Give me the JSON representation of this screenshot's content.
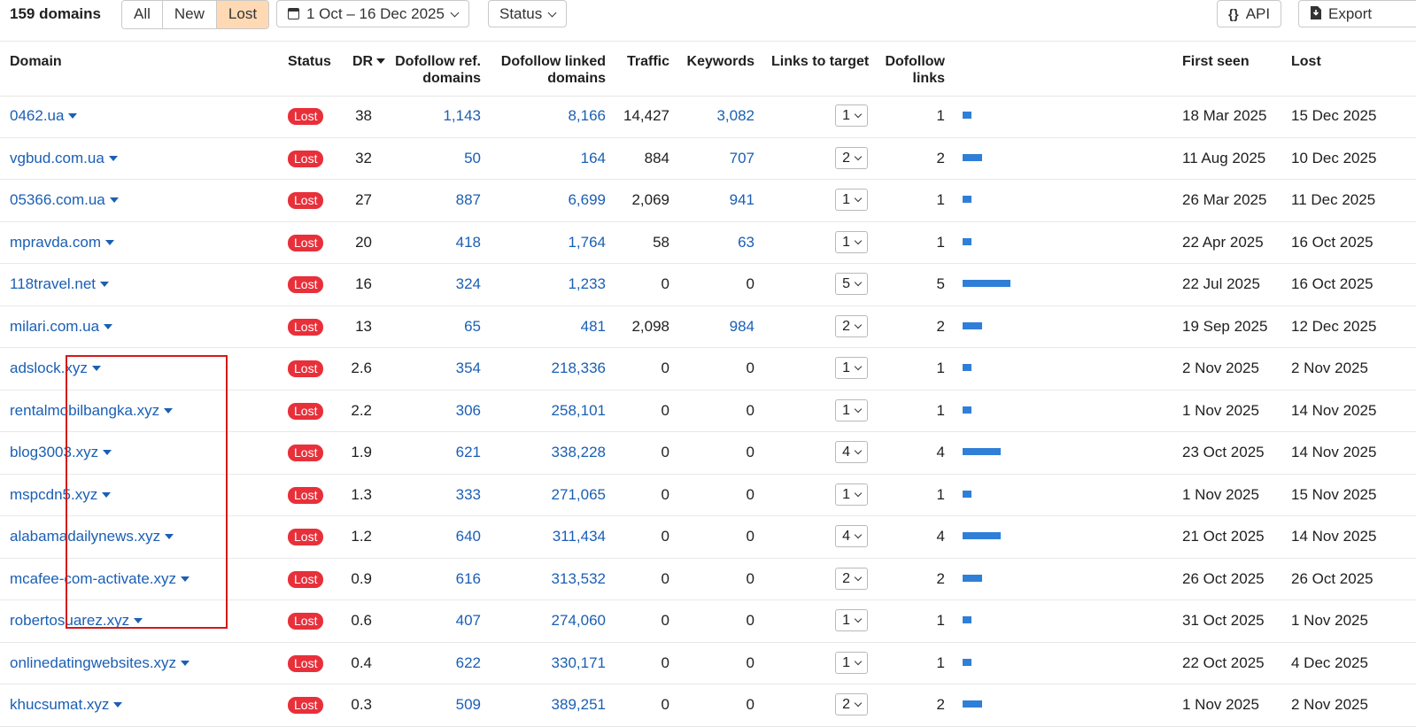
{
  "toolbar": {
    "count_label": "159 domains",
    "filters": [
      {
        "label": "All",
        "active": false
      },
      {
        "label": "New",
        "active": false
      },
      {
        "label": "Lost",
        "active": true
      }
    ],
    "date_range": "1 Oct – 16 Dec 2025",
    "status_label": "Status",
    "api_label": "API",
    "export_label": "Export"
  },
  "table": {
    "columns": {
      "domain": "Domain",
      "status": "Status",
      "dr": "DR",
      "ref_domains_1": "Dofollow ref.",
      "ref_domains_2": "domains",
      "linked_domains_1": "Dofollow linked",
      "linked_domains_2": "domains",
      "traffic": "Traffic",
      "keywords": "Keywords",
      "links_to_target": "Links to target",
      "dofollow_links_1": "Dofollow",
      "dofollow_links_2": "links",
      "first_seen": "First seen",
      "lost": "Lost"
    },
    "max_dofollow_links": 5,
    "rows": [
      {
        "domain": "0462.ua",
        "status": "Lost",
        "dr": "38",
        "ref": "1,143",
        "linked": "8,166",
        "traffic": "14,427",
        "keywords": "3,082",
        "ltt": "1",
        "dfl": "1",
        "first_seen": "18 Mar 2025",
        "lost": "15 Dec 2025"
      },
      {
        "domain": "vgbud.com.ua",
        "status": "Lost",
        "dr": "32",
        "ref": "50",
        "linked": "164",
        "traffic": "884",
        "keywords": "707",
        "ltt": "2",
        "dfl": "2",
        "first_seen": "11 Aug 2025",
        "lost": "10 Dec 2025"
      },
      {
        "domain": "05366.com.ua",
        "status": "Lost",
        "dr": "27",
        "ref": "887",
        "linked": "6,699",
        "traffic": "2,069",
        "keywords": "941",
        "ltt": "1",
        "dfl": "1",
        "first_seen": "26 Mar 2025",
        "lost": "11 Dec 2025"
      },
      {
        "domain": "mpravda.com",
        "status": "Lost",
        "dr": "20",
        "ref": "418",
        "linked": "1,764",
        "traffic": "58",
        "keywords": "63",
        "ltt": "1",
        "dfl": "1",
        "first_seen": "22 Apr 2025",
        "lost": "16 Oct 2025"
      },
      {
        "domain": "118travel.net",
        "status": "Lost",
        "dr": "16",
        "ref": "324",
        "linked": "1,233",
        "traffic": "0",
        "keywords": "0",
        "ltt": "5",
        "dfl": "5",
        "first_seen": "22 Jul 2025",
        "lost": "16 Oct 2025"
      },
      {
        "domain": "milari.com.ua",
        "status": "Lost",
        "dr": "13",
        "ref": "65",
        "linked": "481",
        "traffic": "2,098",
        "keywords": "984",
        "ltt": "2",
        "dfl": "2",
        "first_seen": "19 Sep 2025",
        "lost": "12 Dec 2025"
      },
      {
        "domain": "adslock.xyz",
        "status": "Lost",
        "dr": "2.6",
        "ref": "354",
        "linked": "218,336",
        "traffic": "0",
        "keywords": "0",
        "ltt": "1",
        "dfl": "1",
        "first_seen": "2 Nov 2025",
        "lost": "2 Nov 2025"
      },
      {
        "domain": "rentalmobilbangka.xyz",
        "status": "Lost",
        "dr": "2.2",
        "ref": "306",
        "linked": "258,101",
        "traffic": "0",
        "keywords": "0",
        "ltt": "1",
        "dfl": "1",
        "first_seen": "1 Nov 2025",
        "lost": "14 Nov 2025"
      },
      {
        "domain": "blog3003.xyz",
        "status": "Lost",
        "dr": "1.9",
        "ref": "621",
        "linked": "338,228",
        "traffic": "0",
        "keywords": "0",
        "ltt": "4",
        "dfl": "4",
        "first_seen": "23 Oct 2025",
        "lost": "14 Nov 2025"
      },
      {
        "domain": "mspcdn5.xyz",
        "status": "Lost",
        "dr": "1.3",
        "ref": "333",
        "linked": "271,065",
        "traffic": "0",
        "keywords": "0",
        "ltt": "1",
        "dfl": "1",
        "first_seen": "1 Nov 2025",
        "lost": "15 Nov 2025"
      },
      {
        "domain": "alabamadailynews.xyz",
        "status": "Lost",
        "dr": "1.2",
        "ref": "640",
        "linked": "311,434",
        "traffic": "0",
        "keywords": "0",
        "ltt": "4",
        "dfl": "4",
        "first_seen": "21 Oct 2025",
        "lost": "14 Nov 2025"
      },
      {
        "domain": "mcafee-com-activate.xyz",
        "status": "Lost",
        "dr": "0.9",
        "ref": "616",
        "linked": "313,532",
        "traffic": "0",
        "keywords": "0",
        "ltt": "2",
        "dfl": "2",
        "first_seen": "26 Oct 2025",
        "lost": "26 Oct 2025"
      },
      {
        "domain": "robertosuarez.xyz",
        "status": "Lost",
        "dr": "0.6",
        "ref": "407",
        "linked": "274,060",
        "traffic": "0",
        "keywords": "0",
        "ltt": "1",
        "dfl": "1",
        "first_seen": "31 Oct 2025",
        "lost": "1 Nov 2025"
      },
      {
        "domain": "onlinedatingwebsites.xyz",
        "status": "Lost",
        "dr": "0.4",
        "ref": "622",
        "linked": "330,171",
        "traffic": "0",
        "keywords": "0",
        "ltt": "1",
        "dfl": "1",
        "first_seen": "22 Oct 2025",
        "lost": "4 Dec 2025"
      },
      {
        "domain": "khucsumat.xyz",
        "status": "Lost",
        "dr": "0.3",
        "ref": "509",
        "linked": "389,251",
        "traffic": "0",
        "keywords": "0",
        "ltt": "2",
        "dfl": "2",
        "first_seen": "1 Nov 2025",
        "lost": "2 Nov 2025"
      }
    ]
  },
  "colors": {
    "link": "#1a5fb4",
    "badge": "#e8303a",
    "bar": "#2f7fd8",
    "active_filter": "#ffd9b3",
    "highlight_box": "#d41919"
  },
  "icons": {
    "calendar": "calendar-icon",
    "api": "braces-icon",
    "export": "download-icon"
  }
}
